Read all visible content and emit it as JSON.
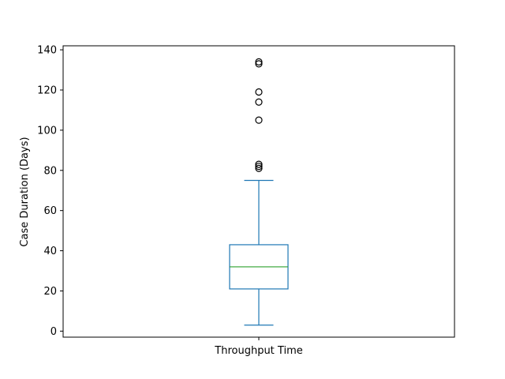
{
  "chart_data": {
    "type": "box",
    "title": "",
    "xlabel": "",
    "ylabel": "Case Duration (Days)",
    "categories": [
      "Throughput Time"
    ],
    "ylim": [
      -3,
      142
    ],
    "yticks": [
      0,
      20,
      40,
      60,
      80,
      100,
      120,
      140
    ],
    "ytick_labels": [
      "0",
      "20",
      "40",
      "60",
      "80",
      "100",
      "120",
      "140"
    ],
    "grid": false,
    "legend": "none",
    "boxes": [
      {
        "category": "Throughput Time",
        "whisker_low": 3,
        "q1": 21,
        "median": 32,
        "q3": 43,
        "whisker_high": 75,
        "outliers": [
          81,
          82,
          83,
          105,
          114,
          119,
          133,
          134
        ]
      }
    ],
    "colors": {
      "box": "#1f77b4",
      "median": "#2ca02c",
      "outlier": "#000000",
      "axes": "#000000"
    }
  }
}
